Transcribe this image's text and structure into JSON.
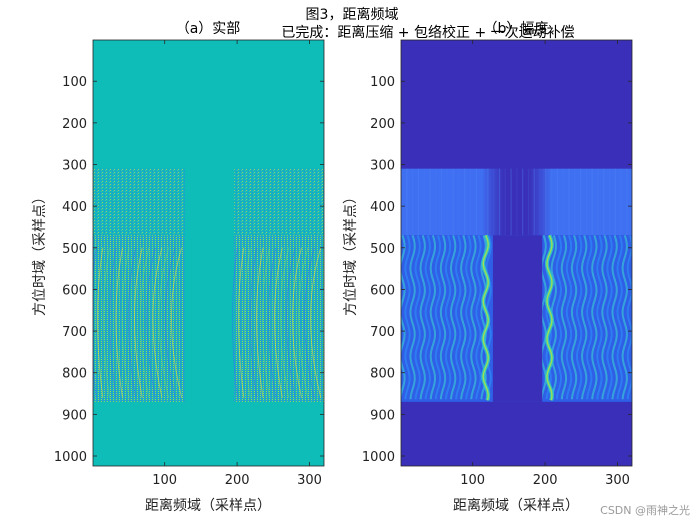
{
  "figure": {
    "title_line1": "图3，距离频域",
    "title_line2": "已完成：距离压缩 + 包络校正 + 一次运动补偿"
  },
  "watermark": "CSDN @雨神之光",
  "chart_data": [
    {
      "type": "heatmap",
      "title": "（a）实部",
      "xlabel": "距离频域（采样点）",
      "ylabel": "方位时域（采样点）",
      "xlim": [
        1,
        320
      ],
      "ylim": [
        1,
        1024
      ],
      "y_reversed": true,
      "xticks": [
        100,
        200,
        300
      ],
      "yticks": [
        100,
        200,
        300,
        400,
        500,
        600,
        700,
        800,
        900,
        1000
      ],
      "grid": false,
      "colors": {
        "background": "#0fbdb8",
        "texture_a": "#2f78ef",
        "texture_b": "#f2e23a",
        "texture_c": "#66d47a"
      },
      "regions": [
        {
          "name": "signal-left",
          "x": [
            1,
            128
          ],
          "y": [
            310,
            870
          ]
        },
        {
          "name": "signal-right",
          "x": [
            196,
            320
          ],
          "y": [
            310,
            870
          ]
        },
        {
          "name": "strong-band",
          "x": [
            1,
            320
          ],
          "y": [
            470,
            870
          ]
        }
      ]
    },
    {
      "type": "heatmap",
      "title": "（b）幅度",
      "xlabel": "距离频域（采样点）",
      "ylabel": "方位时域（采样点）",
      "xlim": [
        1,
        320
      ],
      "ylim": [
        1,
        1024
      ],
      "y_reversed": true,
      "xticks": [
        100,
        200,
        300
      ],
      "yticks": [
        100,
        200,
        300,
        400,
        500,
        600,
        700,
        800,
        900,
        1000
      ],
      "grid": false,
      "colors": {
        "background": "#3a2fb8",
        "band_light": "#3f72f2",
        "band_mid": "#2f86f4",
        "ridge": "#32c8c0",
        "highlight": "#a6e24a"
      },
      "regions": [
        {
          "name": "upper-band",
          "x": [
            1,
            320
          ],
          "y": [
            310,
            470
          ]
        },
        {
          "name": "wavy-band",
          "x": [
            1,
            320
          ],
          "y": [
            470,
            870
          ]
        },
        {
          "name": "ridge-left",
          "x": [
            100,
            128
          ],
          "y": [
            470,
            870
          ]
        },
        {
          "name": "ridge-right",
          "x": [
            196,
            230
          ],
          "y": [
            470,
            870
          ]
        }
      ]
    }
  ]
}
